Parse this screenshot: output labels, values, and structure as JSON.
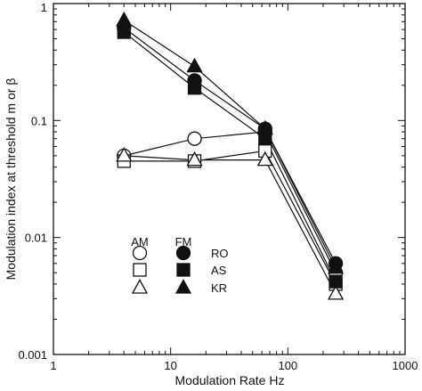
{
  "chart_data": {
    "type": "scatter",
    "title": "",
    "xlabel": "Modulation Rate Hz",
    "ylabel": "Modulation index at threshold m or β",
    "xscale": "log",
    "yscale": "log",
    "xlim": [
      1,
      1000
    ],
    "ylim": [
      0.001,
      1
    ],
    "x_ticks": [
      1,
      10,
      100,
      1000
    ],
    "x_tick_labels": [
      "1",
      "10",
      "100",
      "1000"
    ],
    "y_ticks": [
      0.001,
      0.01,
      0.1,
      1
    ],
    "y_tick_labels": [
      "0.001",
      "0.01",
      "0.1",
      "1"
    ],
    "grid": false,
    "legend": {
      "placement": "lower-left",
      "column_headers": [
        "AM",
        "FM"
      ],
      "row_labels": [
        "RO",
        "AS",
        "KR"
      ]
    },
    "x": [
      4,
      16,
      64,
      256
    ],
    "series": [
      {
        "modulation": "AM",
        "subject": "RO",
        "marker": "circle",
        "filled": false,
        "values": [
          0.05,
          0.07,
          0.08,
          0.005
        ]
      },
      {
        "modulation": "AM",
        "subject": "AS",
        "marker": "square",
        "filled": false,
        "values": [
          0.045,
          0.045,
          0.055,
          0.004
        ]
      },
      {
        "modulation": "AM",
        "subject": "KR",
        "marker": "triangle",
        "filled": false,
        "values": [
          0.05,
          0.046,
          0.046,
          0.0033
        ]
      },
      {
        "modulation": "FM",
        "subject": "RO",
        "marker": "circle",
        "filled": true,
        "values": [
          0.62,
          0.22,
          0.085,
          0.006
        ]
      },
      {
        "modulation": "FM",
        "subject": "AS",
        "marker": "square",
        "filled": true,
        "values": [
          0.57,
          0.19,
          0.07,
          0.0042
        ]
      },
      {
        "modulation": "FM",
        "subject": "KR",
        "marker": "triangle",
        "filled": true,
        "values": [
          0.72,
          0.29,
          0.085,
          0.0055
        ]
      }
    ]
  }
}
